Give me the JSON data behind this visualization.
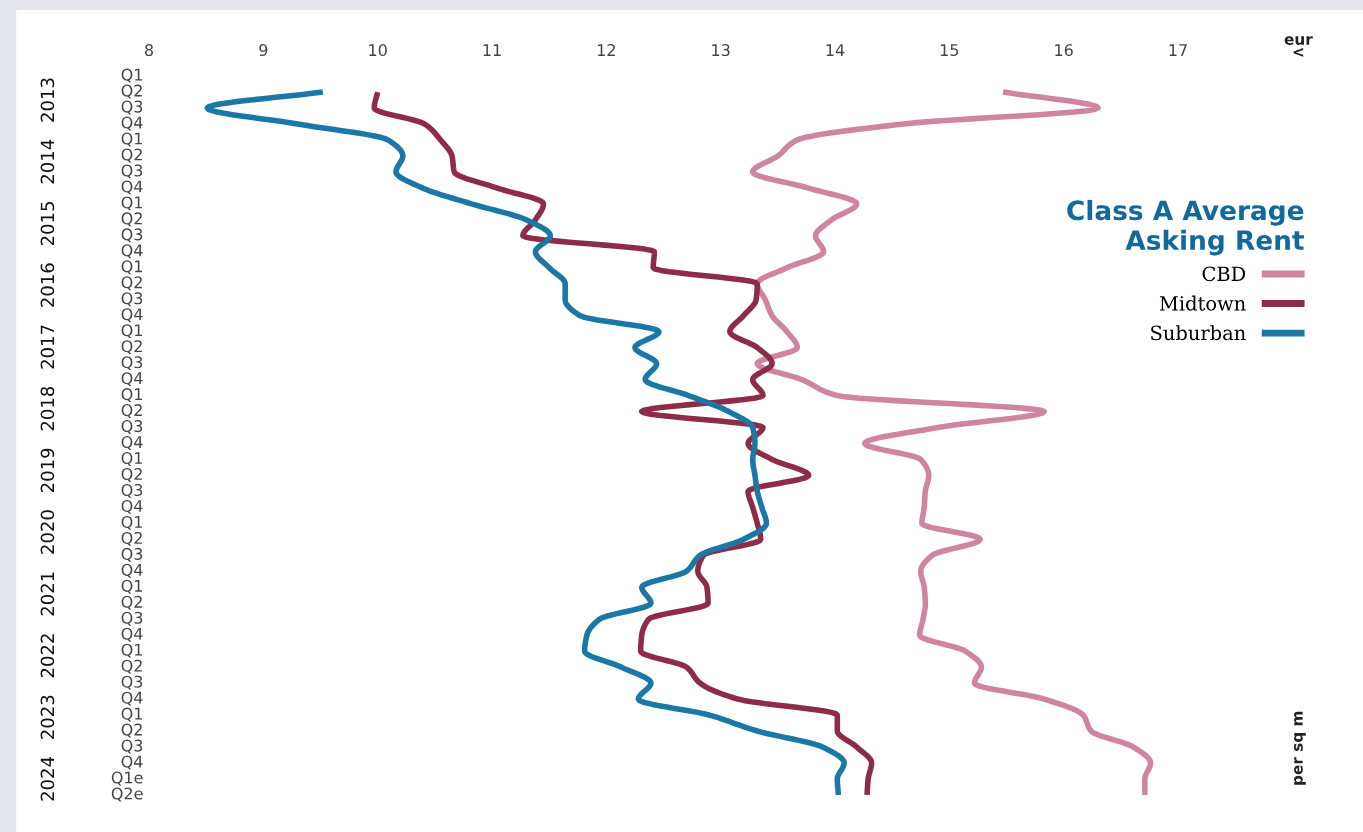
{
  "chart_data": {
    "type": "line",
    "orientation": "horizontal",
    "legend_title": "Class A Average\nAsking Rent",
    "categories": [
      "Q1",
      "Q2",
      "Q3",
      "Q4",
      "Q1",
      "Q2",
      "Q3",
      "Q4",
      "Q1",
      "Q2",
      "Q3",
      "Q4",
      "Q1",
      "Q2",
      "Q3",
      "Q4",
      "Q1",
      "Q2",
      "Q3",
      "Q4",
      "Q1",
      "Q2",
      "Q3",
      "Q4",
      "Q1",
      "Q2",
      "Q3",
      "Q4",
      "Q1",
      "Q2",
      "Q3",
      "Q4",
      "Q1",
      "Q2",
      "Q3",
      "Q4",
      "Q1",
      "Q2",
      "Q3",
      "Q4",
      "Q1",
      "Q2",
      "Q3",
      "Q4",
      "Q1e",
      "Q2e"
    ],
    "annotations": [
      "2013",
      "2014",
      "2015",
      "2016",
      "2017",
      "2018",
      "2019",
      "2020",
      "2021",
      "2022",
      "2023",
      "2024",
      "eur\n<",
      "per sq m"
    ],
    "xlim": [
      8,
      17
    ],
    "xticks": [
      8,
      9,
      10,
      11,
      12,
      13,
      14,
      15,
      16,
      17
    ],
    "grid": false,
    "legend": "right",
    "marker": "none",
    "line_style": "solid",
    "series": [
      {
        "name": "CBD",
        "color": "#cf84a2",
        "values": [
          null,
          15.47,
          16.3,
          14.6,
          13.67,
          13.5,
          13.28,
          13.76,
          14.19,
          13.97,
          13.83,
          13.9,
          13.58,
          13.32,
          13.39,
          13.45,
          13.58,
          13.67,
          13.32,
          13.71,
          14.02,
          15.83,
          14.9,
          14.26,
          14.75,
          14.82,
          14.79,
          14.78,
          14.76,
          15.27,
          14.85,
          14.75,
          14.78,
          14.79,
          14.77,
          14.74,
          15.14,
          15.28,
          15.22,
          15.83,
          16.17,
          16.24,
          16.61,
          16.76,
          16.71,
          16.71
        ]
      },
      {
        "name": "Midtown",
        "color": "#8e2c48",
        "values": [
          null,
          10.0,
          9.97,
          10.41,
          10.55,
          10.65,
          10.67,
          11.04,
          11.45,
          11.38,
          11.27,
          12.42,
          12.41,
          13.32,
          13.31,
          13.2,
          13.08,
          13.32,
          13.45,
          13.28,
          13.37,
          12.31,
          13.37,
          13.24,
          13.45,
          13.77,
          13.24,
          13.28,
          13.32,
          13.35,
          12.85,
          12.8,
          12.88,
          12.89,
          12.37,
          12.31,
          12.3,
          12.7,
          12.82,
          13.15,
          14.02,
          14.02,
          14.19,
          14.32,
          14.29,
          14.28
        ]
      },
      {
        "name": "Suburban",
        "color": "#1a77a6",
        "values": [
          null,
          9.52,
          8.51,
          9.3,
          10.09,
          10.22,
          10.16,
          10.39,
          10.82,
          11.3,
          11.51,
          11.38,
          11.5,
          11.64,
          11.64,
          11.77,
          12.46,
          12.25,
          12.44,
          12.34,
          12.72,
          13.07,
          13.28,
          13.3,
          13.28,
          13.3,
          13.32,
          13.36,
          13.4,
          13.2,
          12.82,
          12.7,
          12.31,
          12.39,
          11.94,
          11.83,
          11.81,
          12.13,
          12.39,
          12.28,
          12.9,
          13.32,
          13.89,
          14.08,
          14.02,
          14.03
        ]
      }
    ]
  }
}
